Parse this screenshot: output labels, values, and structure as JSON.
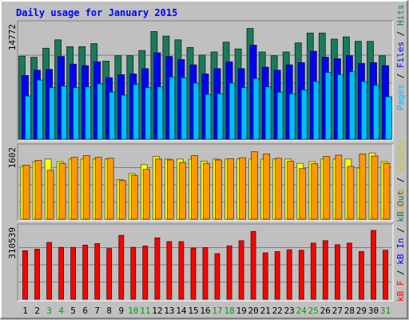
{
  "chart_data": {
    "type": "bar",
    "title": "Daily usage for January 2015",
    "categories": [
      "1",
      "2",
      "3",
      "4",
      "5",
      "6",
      "7",
      "8",
      "9",
      "10",
      "11",
      "12",
      "13",
      "14",
      "15",
      "16",
      "17",
      "18",
      "19",
      "20",
      "21",
      "22",
      "23",
      "24",
      "25",
      "26",
      "27",
      "28",
      "29",
      "30",
      "31"
    ],
    "weekend_days": [
      3,
      4,
      10,
      11,
      17,
      18,
      24,
      25,
      31
    ],
    "panels": [
      {
        "name": "hits-files-pages",
        "max_label": "14772",
        "ymax": 14772,
        "series": [
          {
            "name": "Hits",
            "color": "#1a7a5a",
            "values": [
              10950,
              10800,
              12000,
              13100,
              12200,
              12200,
              12600,
              10300,
              11000,
              11000,
              11700,
              14200,
              13600,
              13100,
              12100,
              11100,
              11500,
              12800,
              11900,
              14600,
              11500,
              11000,
              11500,
              12700,
              14000,
              14000,
              13200,
              13500,
              12900,
              12900,
              11000
            ]
          },
          {
            "name": "Files",
            "color": "#0000ff",
            "values": [
              8400,
              9100,
              9200,
              10900,
              9900,
              9700,
              10200,
              8100,
              8500,
              8600,
              9300,
              11400,
              10900,
              10500,
              9800,
              8600,
              9300,
              10200,
              9300,
              12400,
              9500,
              9100,
              9800,
              10100,
              11600,
              10800,
              10600,
              11000,
              10000,
              10100,
              9700
            ]
          },
          {
            "name": "Pages",
            "color": "#00bfff",
            "values": [
              5700,
              7800,
              6800,
              7000,
              6800,
              6900,
              7300,
              6200,
              5800,
              7200,
              6800,
              6900,
              8200,
              8100,
              7400,
              5900,
              6000,
              7400,
              6800,
              8000,
              6900,
              6200,
              6000,
              6500,
              7600,
              8800,
              8500,
              8900,
              7600,
              7100,
              5600
            ]
          }
        ]
      },
      {
        "name": "visits-sites",
        "max_label": "1602",
        "ymax": 1602,
        "series": [
          {
            "name": "Visits",
            "color": "#ffff00",
            "values": [
              1230,
              1340,
              1400,
              1340,
              1400,
              1400,
              1400,
              1400,
              920,
              1060,
              1270,
              1460,
              1400,
              1400,
              1400,
              1350,
              1400,
              1400,
              1400,
              1400,
              1400,
              1400,
              1400,
              1300,
              1340,
              1400,
              1400,
              1400,
              1190,
              1540,
              1340
            ]
          },
          {
            "name": "Sites",
            "color": "#ff9900",
            "values": [
              1260,
              1370,
              1140,
              1300,
              1440,
              1480,
              1440,
              1420,
              900,
              1020,
              1160,
              1400,
              1380,
              1320,
              1480,
              1300,
              1380,
              1410,
              1430,
              1570,
              1520,
              1420,
              1350,
              1180,
              1290,
              1460,
              1490,
              1230,
              1520,
              1470,
              1300
            ]
          }
        ]
      },
      {
        "name": "kbytes",
        "max_label": "310539",
        "ymax": 310539,
        "series": [
          {
            "name": "kB F",
            "color": "#ff0000",
            "values": [
              219000,
              226000,
              256000,
              234000,
              234000,
              244000,
              251000,
              229000,
              288000,
              234000,
              240000,
              277000,
              260000,
              260000,
              231000,
              233000,
              206000,
              241000,
              264000,
              306000,
              209000,
              215000,
              223000,
              221000,
              253000,
              264000,
              246000,
              253000,
              215000,
              310000,
              221000
            ]
          }
        ]
      }
    ],
    "legend_right": [
      {
        "text": "Pages",
        "color": "#00bfff"
      },
      {
        "text": " / ",
        "color": "#000000"
      },
      {
        "text": "Files",
        "color": "#0000ff"
      },
      {
        "text": " / ",
        "color": "#000000"
      },
      {
        "text": "Hits",
        "color": "#1a7a5a"
      }
    ],
    "legend_mid": [
      {
        "text": "Sites",
        "color": "#ff9900"
      },
      {
        "text": " / ",
        "color": "#000000"
      },
      {
        "text": "Visits",
        "color": "#cccc00"
      }
    ],
    "legend_bottom": [
      {
        "text": "kB F",
        "color": "#ff0000"
      },
      {
        "text": " / ",
        "color": "#000000"
      },
      {
        "text": "kB In",
        "color": "#0000ff"
      },
      {
        "text": " / ",
        "color": "#000000"
      },
      {
        "text": "kB Out",
        "color": "#1a7a5a"
      }
    ],
    "colors": {
      "background": "#c0c0c0",
      "title": "#0000ff",
      "weekday_label": "#000000",
      "weekend_label": "#00a000",
      "grid": "#808080"
    }
  }
}
